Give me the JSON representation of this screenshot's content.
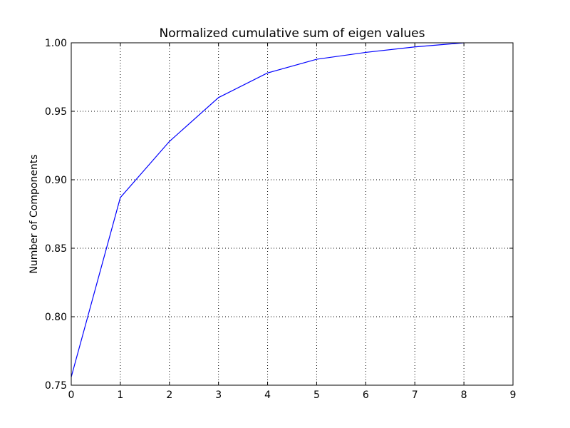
{
  "chart_data": {
    "type": "line",
    "title": "Normalized cumulative sum of eigen values",
    "xlabel": "",
    "ylabel": "Number of Components",
    "xlim": [
      0,
      9
    ],
    "ylim": [
      0.75,
      1.0
    ],
    "x_ticks": [
      0,
      1,
      2,
      3,
      4,
      5,
      6,
      7,
      8,
      9
    ],
    "x_tick_labels": [
      "0",
      "1",
      "2",
      "3",
      "4",
      "5",
      "6",
      "7",
      "8",
      "9"
    ],
    "y_ticks": [
      0.75,
      0.8,
      0.85,
      0.9,
      0.95,
      1.0
    ],
    "y_tick_labels": [
      "0.75",
      "0.80",
      "0.85",
      "0.90",
      "0.95",
      "1.00"
    ],
    "grid": true,
    "series": [
      {
        "color": "#0000ff",
        "x": [
          0,
          1,
          2,
          3,
          4,
          5,
          6,
          7,
          8
        ],
        "y": [
          0.756,
          0.887,
          0.928,
          0.96,
          0.978,
          0.988,
          0.993,
          0.997,
          1.0
        ]
      }
    ]
  }
}
